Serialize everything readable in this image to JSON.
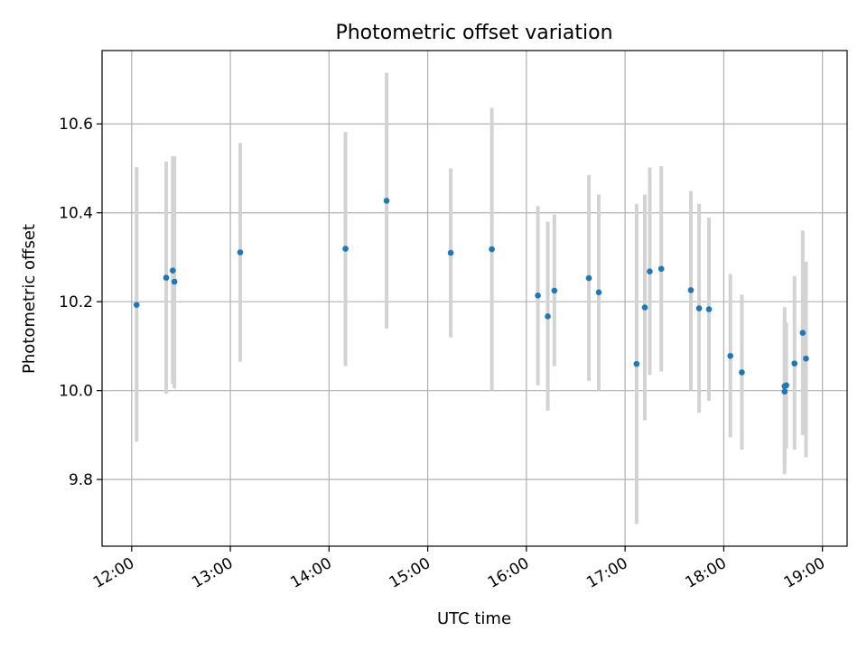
{
  "chart_data": {
    "type": "scatter",
    "title": "Photometric offset variation",
    "xlabel": "UTC time",
    "ylabel": "Photometric offset",
    "xlim": [
      "11:42",
      "19:15"
    ],
    "ylim": [
      9.65,
      10.765
    ],
    "grid": true,
    "x_ticks": [
      "12:00",
      "13:00",
      "14:00",
      "15:00",
      "16:00",
      "17:00",
      "18:00",
      "19:00"
    ],
    "y_ticks": [
      "9.8",
      "10.0",
      "10.2",
      "10.4",
      "10.6"
    ],
    "colors": {
      "marker": "#1f77b4",
      "errorbar": "#d3d3d3",
      "grid": "#b0b0b0"
    },
    "points": [
      {
        "t": "12:03",
        "y": 10.193,
        "lo": 9.885,
        "hi": 10.503
      },
      {
        "t": "12:21",
        "y": 10.254,
        "lo": 9.993,
        "hi": 10.515
      },
      {
        "t": "12:25",
        "y": 10.27,
        "lo": 10.015,
        "hi": 10.527
      },
      {
        "t": "12:26",
        "y": 10.245,
        "lo": 10.005,
        "hi": 10.527
      },
      {
        "t": "13:06",
        "y": 10.311,
        "lo": 10.065,
        "hi": 10.557
      },
      {
        "t": "14:10",
        "y": 10.319,
        "lo": 10.055,
        "hi": 10.582
      },
      {
        "t": "14:35",
        "y": 10.427,
        "lo": 10.14,
        "hi": 10.715
      },
      {
        "t": "15:14",
        "y": 10.31,
        "lo": 10.12,
        "hi": 10.5
      },
      {
        "t": "15:39",
        "y": 10.318,
        "lo": 10.0,
        "hi": 10.636
      },
      {
        "t": "16:07",
        "y": 10.214,
        "lo": 10.012,
        "hi": 10.415
      },
      {
        "t": "16:13",
        "y": 10.167,
        "lo": 9.955,
        "hi": 10.38
      },
      {
        "t": "16:17",
        "y": 10.225,
        "lo": 10.055,
        "hi": 10.396
      },
      {
        "t": "16:38",
        "y": 10.253,
        "lo": 10.022,
        "hi": 10.485
      },
      {
        "t": "16:44",
        "y": 10.221,
        "lo": 10.0,
        "hi": 10.441
      },
      {
        "t": "17:07",
        "y": 10.06,
        "lo": 9.7,
        "hi": 10.42
      },
      {
        "t": "17:12",
        "y": 10.187,
        "lo": 9.933,
        "hi": 10.441
      },
      {
        "t": "17:15",
        "y": 10.268,
        "lo": 10.035,
        "hi": 10.502
      },
      {
        "t": "17:22",
        "y": 10.274,
        "lo": 10.043,
        "hi": 10.505
      },
      {
        "t": "17:40",
        "y": 10.226,
        "lo": 10.0,
        "hi": 10.449
      },
      {
        "t": "17:45",
        "y": 10.185,
        "lo": 9.95,
        "hi": 10.42
      },
      {
        "t": "17:51",
        "y": 10.183,
        "lo": 9.977,
        "hi": 10.389
      },
      {
        "t": "18:04",
        "y": 10.078,
        "lo": 9.895,
        "hi": 10.262
      },
      {
        "t": "18:11",
        "y": 10.041,
        "lo": 9.867,
        "hi": 10.216
      },
      {
        "t": "18:37",
        "y": 10.01,
        "lo": 9.812,
        "hi": 10.188
      },
      {
        "t": "18:37",
        "y": 9.998,
        "lo": 9.835,
        "hi": 10.16
      },
      {
        "t": "18:38",
        "y": 10.012,
        "lo": 9.87,
        "hi": 10.153
      },
      {
        "t": "18:43",
        "y": 10.061,
        "lo": 9.867,
        "hi": 10.257
      },
      {
        "t": "18:48",
        "y": 10.13,
        "lo": 9.9,
        "hi": 10.36
      },
      {
        "t": "18:50",
        "y": 10.072,
        "lo": 9.85,
        "hi": 10.29
      }
    ]
  }
}
